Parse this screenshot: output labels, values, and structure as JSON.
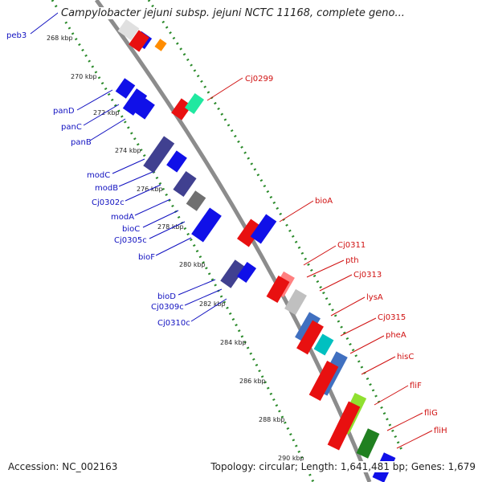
{
  "title": "Campylobacter jejuni subsp. jejuni NCTC 11168, complete geno...",
  "accession": "Accession: NC_002163",
  "topology": "Topology: circular; Length: 1,641,481 bp; Genes: 1,679",
  "kbp_labels": [
    "268 kbp",
    "270 kbp",
    "272 kbp",
    "274 kbp",
    "276 kbp",
    "278 kbp",
    "280 kbp",
    "282 kbp",
    "284 kbp",
    "286 kbp",
    "288 kbp",
    "290 kbp"
  ],
  "left_genes": [
    "peb3",
    "panD",
    "panC",
    "panB",
    "modC",
    "modB",
    "Cj0302c",
    "modA",
    "bioC",
    "Cj0305c",
    "bioF",
    "bioD",
    "Cj0309c",
    "Cj0310c"
  ],
  "right_genes": [
    "Cj0299",
    "bioA",
    "Cj0311",
    "pth",
    "Cj0313",
    "lysA",
    "Cj0315",
    "pheA",
    "hisC",
    "fliF",
    "fliG",
    "fliH"
  ],
  "colors": {
    "backbone": "#8c8c8c",
    "forward_strand": "#e81010",
    "reverse_strand": "#1010e8",
    "tick_dots": "#2a8a2a",
    "label_reverse": "#1010c0",
    "label_forward": "#d01010"
  }
}
